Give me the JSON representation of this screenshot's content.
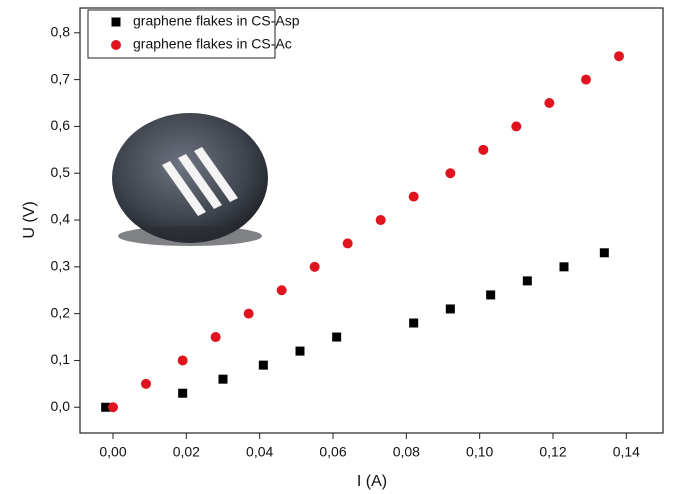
{
  "chart_data": {
    "type": "scatter",
    "x_label": "I (A)",
    "y_label": "U (V)",
    "xlim": [
      -0.009,
      0.15
    ],
    "ylim": [
      -0.055,
      0.853
    ],
    "xticks": [
      {
        "value": 0,
        "label": "0,00"
      },
      {
        "value": 0.02,
        "label": "0,02"
      },
      {
        "value": 0.04,
        "label": "0,04"
      },
      {
        "value": 0.06,
        "label": "0,06"
      },
      {
        "value": 0.08,
        "label": "0,08"
      },
      {
        "value": 0.1,
        "label": "0,10"
      },
      {
        "value": 0.12,
        "label": "0,12"
      },
      {
        "value": 0.14,
        "label": "0,14"
      }
    ],
    "yticks": [
      {
        "value": 0,
        "label": "0,0"
      },
      {
        "value": 0.1,
        "label": "0,1"
      },
      {
        "value": 0.2,
        "label": "0,2"
      },
      {
        "value": 0.3,
        "label": "0,3"
      },
      {
        "value": 0.4,
        "label": "0,4"
      },
      {
        "value": 0.5,
        "label": "0,5"
      },
      {
        "value": 0.6,
        "label": "0,6"
      },
      {
        "value": 0.7,
        "label": "0,7"
      },
      {
        "value": 0.8,
        "label": "0,8"
      }
    ],
    "legend": "upper left",
    "series": [
      {
        "name": "graphene flakes in CS-Asp",
        "color": "#000000",
        "marker": "square",
        "x": [
          -0.002,
          0.019,
          0.03,
          0.041,
          0.051,
          0.061,
          0.082,
          0.092,
          0.103,
          0.113,
          0.123,
          0.134
        ],
        "values": [
          0,
          0.03,
          0.06,
          0.09,
          0.12,
          0.15,
          0.18,
          0.21,
          0.24,
          0.27,
          0.3,
          0.33
        ]
      },
      {
        "name": "graphene flakes in CS-Ac",
        "color": "#e0141e",
        "marker": "circle",
        "x": [
          0,
          0.009,
          0.019,
          0.028,
          0.037,
          0.046,
          0.055,
          0.064,
          0.073,
          0.082,
          0.092,
          0.101,
          0.11,
          0.119,
          0.129,
          0.138
        ],
        "values": [
          0,
          0.05,
          0.1,
          0.15,
          0.2,
          0.25,
          0.3,
          0.35,
          0.4,
          0.45,
          0.5,
          0.55,
          0.6,
          0.65,
          0.7,
          0.75
        ]
      }
    ]
  }
}
